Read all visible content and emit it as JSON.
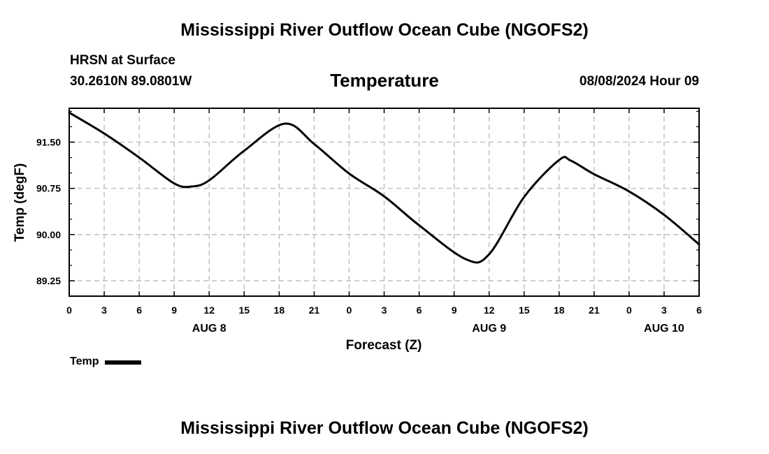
{
  "header": {
    "title": "Mississippi River Outflow Ocean Cube (NGOFS2)",
    "location": "HRSN at Surface",
    "coords": "30.2610N  89.0801W",
    "variable": "Temperature",
    "datetime": "08/08/2024 Hour 09"
  },
  "footer": {
    "title": "Mississippi River Outflow Ocean Cube (NGOFS2)"
  },
  "chart_data": {
    "type": "line",
    "title": "Temperature",
    "xlabel": "Forecast (Z)",
    "ylabel": "Temp (degF)",
    "xlim": [
      0,
      54
    ],
    "ylim": [
      89.0,
      92.05
    ],
    "grid": true,
    "legend_position": "bottom-left",
    "x_ticks": [
      0,
      3,
      6,
      9,
      12,
      15,
      18,
      21,
      24,
      27,
      30,
      33,
      36,
      39,
      42,
      45,
      48,
      51,
      54
    ],
    "x_tick_labels": [
      "0",
      "3",
      "6",
      "9",
      "12",
      "15",
      "18",
      "21",
      "0",
      "3",
      "6",
      "9",
      "12",
      "15",
      "18",
      "21",
      "0",
      "3",
      "6"
    ],
    "x_day_labels": [
      {
        "x": 12,
        "label": "AUG 8"
      },
      {
        "x": 36,
        "label": "AUG 9"
      },
      {
        "x": 51,
        "label": "AUG 10"
      }
    ],
    "y_ticks": [
      89.25,
      90.0,
      90.75,
      91.5
    ],
    "y_tick_labels": [
      "89.25",
      "90.00",
      "90.75",
      "91.50"
    ],
    "y_minor_ticks": [
      89.0,
      89.5,
      89.75,
      90.25,
      90.5,
      91.0,
      91.25,
      91.75,
      92.0
    ],
    "series": [
      {
        "name": "Temp",
        "x": [
          0,
          3,
          6,
          9,
          10.5,
          12,
          15,
          18.5,
          21,
          24,
          27,
          30,
          34,
          36,
          39,
          42,
          43,
          45,
          48,
          51,
          54
        ],
        "y": [
          91.98,
          91.64,
          91.25,
          90.83,
          90.78,
          90.88,
          91.36,
          91.8,
          91.47,
          90.99,
          90.62,
          90.15,
          89.6,
          89.68,
          90.61,
          91.21,
          91.2,
          90.98,
          90.7,
          90.32,
          89.84
        ]
      }
    ]
  }
}
